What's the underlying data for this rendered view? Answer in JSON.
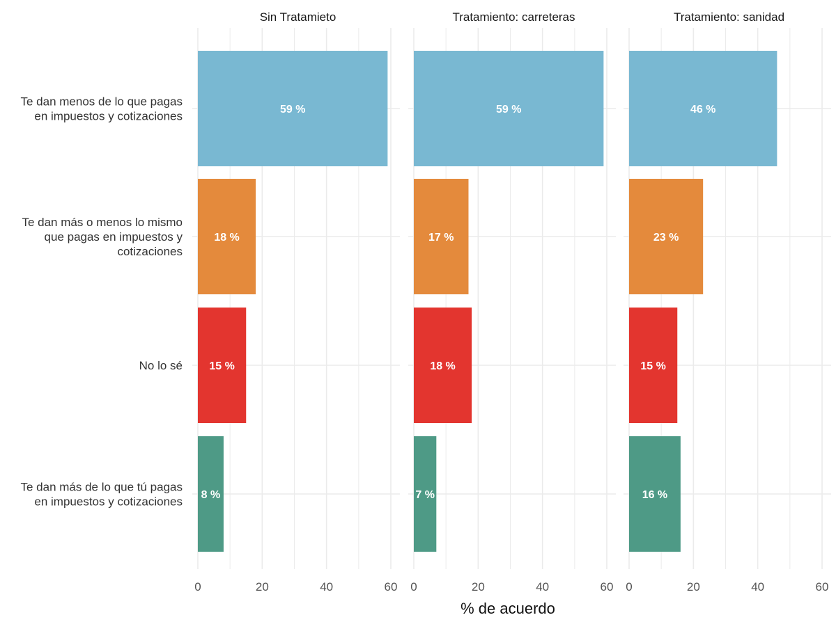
{
  "chart_data": {
    "type": "bar",
    "orientation": "horizontal",
    "xlabel": "% de acuerdo",
    "xlim": [
      0,
      60
    ],
    "xticks": [
      "0",
      "20",
      "40",
      "60"
    ],
    "grid": true,
    "categories": [
      [
        "Te dan menos de lo que pagas",
        "en impuestos y cotizaciones"
      ],
      [
        "Te dan más o menos lo mismo",
        "que pagas en impuestos y",
        "cotizaciones"
      ],
      [
        "No lo sé"
      ],
      [
        "Te dan más de lo que tú pagas",
        "en impuestos y cotizaciones"
      ]
    ],
    "colors": [
      "#79b8d2",
      "#e48a3c",
      "#e3352f",
      "#4e9a86"
    ],
    "facets": [
      {
        "title": "Sin Tratamieto",
        "values": [
          59,
          18,
          15,
          8
        ],
        "labels": [
          "59 %",
          "18 %",
          "15 %",
          "8 %"
        ]
      },
      {
        "title": "Tratamiento: carreteras",
        "values": [
          59,
          17,
          18,
          7
        ],
        "labels": [
          "59 %",
          "17 %",
          "18 %",
          "7 %"
        ]
      },
      {
        "title": "Tratamiento: sanidad",
        "values": [
          46,
          23,
          15,
          16
        ],
        "labels": [
          "46 %",
          "23 %",
          "15 %",
          "16 %"
        ]
      }
    ]
  }
}
